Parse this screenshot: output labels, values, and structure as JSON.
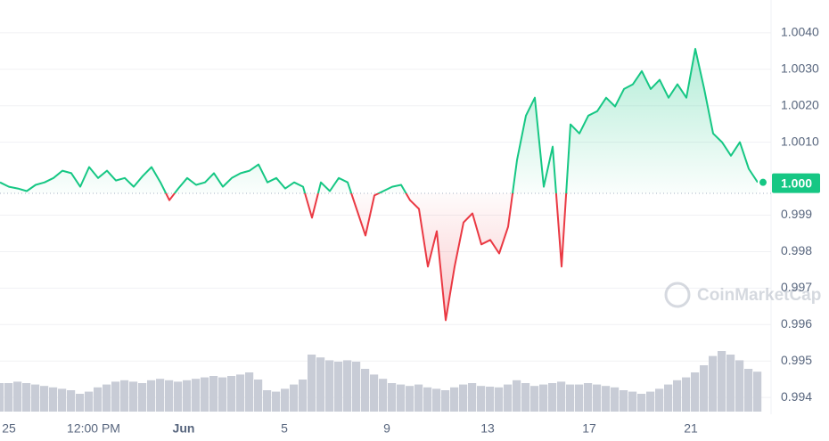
{
  "chart_data": {
    "type": "area",
    "values": [
      0.9999,
      0.99978,
      0.99973,
      0.99966,
      0.99983,
      0.9999,
      1.00002,
      1.00022,
      1.00015,
      0.99978,
      1.00032,
      1.00002,
      1.00022,
      0.99995,
      1.00002,
      0.99978,
      1.00007,
      1.00032,
      0.9999,
      0.99941,
      0.99973,
      1.00002,
      0.99983,
      0.9999,
      1.00015,
      0.99978,
      1.00002,
      1.00015,
      1.00022,
      1.00039,
      0.9999,
      1.00002,
      0.99973,
      0.9999,
      0.99978,
      0.99893,
      0.9999,
      0.99966,
      1.00002,
      0.9999,
      0.99917,
      0.99844,
      0.99954,
      0.99966,
      0.99978,
      0.99983,
      0.99941,
      0.99917,
      0.99759,
      0.99856,
      0.99612,
      0.99759,
      0.9988,
      0.99905,
      0.9982,
      0.99832,
      0.99795,
      0.99868,
      1.00051,
      1.00173,
      1.00222,
      0.99978,
      1.00088,
      0.99759,
      1.00149,
      1.00124,
      1.00173,
      1.00185,
      1.00222,
      1.00198,
      1.00246,
      1.00259,
      1.00295,
      1.00246,
      1.00271,
      1.00222,
      1.00259,
      1.00222,
      1.00356,
      1.00246,
      1.00124,
      1.001,
      1.00063,
      1.001,
      1.00027,
      0.9999
    ],
    "volume": [
      40,
      40,
      42,
      40,
      38,
      36,
      34,
      32,
      30,
      25,
      28,
      34,
      38,
      42,
      44,
      42,
      40,
      44,
      46,
      44,
      42,
      44,
      46,
      48,
      50,
      48,
      50,
      52,
      55,
      45,
      30,
      28,
      32,
      38,
      45,
      80,
      76,
      72,
      70,
      72,
      70,
      60,
      52,
      46,
      40,
      38,
      36,
      38,
      34,
      32,
      30,
      34,
      38,
      40,
      36,
      35,
      34,
      38,
      44,
      40,
      36,
      38,
      40,
      42,
      38,
      38,
      40,
      38,
      36,
      34,
      30,
      28,
      25,
      28,
      32,
      38,
      44,
      48,
      55,
      65,
      78,
      85,
      80,
      72,
      60,
      56
    ],
    "volume_lim": [
      0,
      100
    ],
    "baseline": 0.9996,
    "price_label": {
      "value": 1.0,
      "label": "1.000"
    },
    "up_color": "#16c784",
    "down_color": "#ea3943",
    "volume_color": "#c8ccd6",
    "xlim": [
      0,
      86.5
    ],
    "ylim": [
      0.99354,
      1.0049
    ],
    "xticks": [
      {
        "value": 1,
        "label": "25"
      },
      {
        "value": 10.5,
        "label": "12:00 PM"
      },
      {
        "value": 20.6,
        "label": "Jun"
      },
      {
        "value": 31.9,
        "label": "5"
      },
      {
        "value": 43.4,
        "label": "9"
      },
      {
        "value": 54.7,
        "label": "13"
      },
      {
        "value": 66.1,
        "label": "17"
      },
      {
        "value": 77.5,
        "label": "21"
      }
    ],
    "yticks": [
      {
        "value": 1.004,
        "label": "1.0040"
      },
      {
        "value": 1.003,
        "label": "1.0030"
      },
      {
        "value": 1.002,
        "label": "1.0020"
      },
      {
        "value": 1.001,
        "label": "1.0010"
      },
      0.999,
      0.998,
      0.997,
      0.996,
      0.995,
      0.994
    ],
    "grid": true,
    "watermark": "CoinMarketCap"
  }
}
